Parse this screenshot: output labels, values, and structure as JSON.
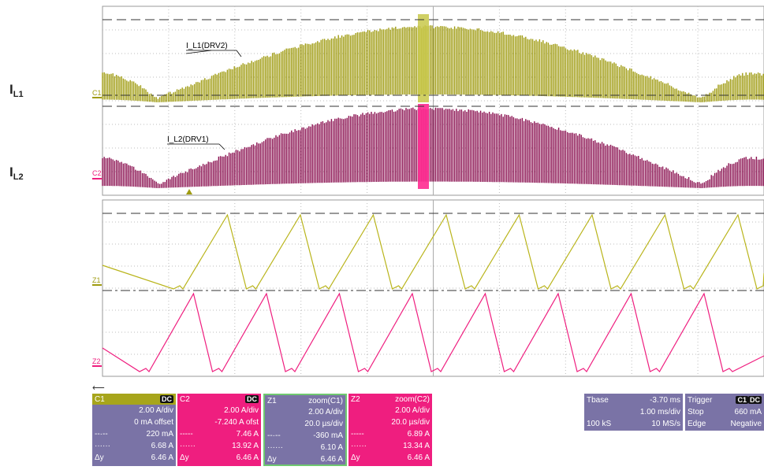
{
  "side_labels": {
    "il1": {
      "main": "I",
      "sub": "L1"
    },
    "il2": {
      "main": "I",
      "sub": "L2"
    }
  },
  "traces": {
    "c1_name": "I_L1(DRV2)",
    "c2_name": "I_L2(DRV1)"
  },
  "markers": {
    "c1": "C1",
    "c2": "C2",
    "z1": "Z1",
    "z2": "Z2"
  },
  "colors": {
    "ch1": "#9f9b10",
    "ch2": "#8a1050",
    "z2": "#ef1e7f",
    "panel_bg": "#7a73a6",
    "grid": "#bdbdbd"
  },
  "panels": {
    "c1": {
      "name": "C1",
      "coupling": "DC",
      "scale": "2.00 A/div",
      "offset": "0 mA offset",
      "cursor1": "220 mA",
      "cursor2": "6.68 A",
      "dy_label": "Δy",
      "dy": "6.46 A"
    },
    "c2": {
      "name": "C2",
      "coupling": "DC",
      "scale": "2.00 A/div",
      "offset": "-7.240 A ofst",
      "cursor1": "7.46 A",
      "cursor2": "13.92 A",
      "dy_label": "Δy",
      "dy": "6.46 A"
    },
    "z1": {
      "name": "Z1",
      "source": "zoom(C1)",
      "scale": "2.00 A/div",
      "timebase": "20.0 µs/div",
      "cursor1": "-360 mA",
      "cursor2": "6.10 A",
      "dy_label": "Δy",
      "dy": "6.46 A"
    },
    "z2": {
      "name": "Z2",
      "source": "zoom(C2)",
      "scale": "2.00 A/div",
      "timebase": "20.0 µs/div",
      "cursor1": "6.89 A",
      "cursor2": "13.34 A",
      "dy_label": "Δy",
      "dy": "6.46 A"
    },
    "tbase": {
      "label": "Tbase",
      "delay": "-3.70 ms",
      "div": "1.00 ms/div",
      "samples": "100 kS",
      "rate": "10 MS/s"
    },
    "trigger": {
      "label": "Trigger",
      "source": "C1",
      "coupling": "DC",
      "mode": "Stop",
      "level": "660 mA",
      "type": "Edge",
      "slope": "Negative"
    }
  }
}
